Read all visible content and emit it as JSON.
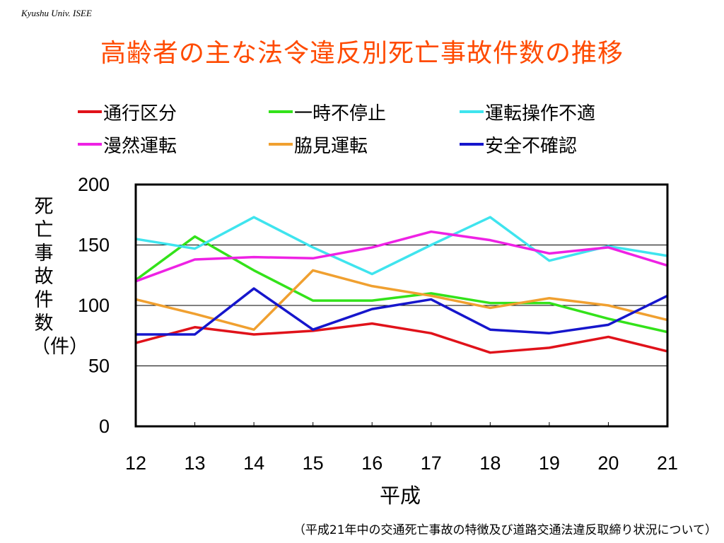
{
  "header": {
    "org": "Kyushu Univ. ISEE",
    "title": "高齢者の主な法令違反別死亡事故件数の推移"
  },
  "source_note": "（平成21年中の交通死亡事故の特徴及び道路交通法違反取締り状況について）",
  "chart_data": {
    "type": "line",
    "title": "高齢者の主な法令違反別死亡事故件数の推移",
    "xlabel": "平成",
    "ylabel": "死亡事故件数（件）",
    "categories": [
      "12",
      "13",
      "14",
      "15",
      "16",
      "17",
      "18",
      "19",
      "20",
      "21"
    ],
    "ylim": [
      0,
      200
    ],
    "yticks": [
      0,
      50,
      100,
      150,
      200
    ],
    "grid": true,
    "legend_position": "top",
    "series": [
      {
        "name": "通行区分",
        "color": "#e0121a",
        "values": [
          69,
          82,
          76,
          79,
          85,
          77,
          61,
          65,
          74,
          62
        ]
      },
      {
        "name": "一時不停止",
        "color": "#33e21a",
        "values": [
          121,
          157,
          129,
          104,
          104,
          110,
          102,
          102,
          89,
          78
        ]
      },
      {
        "name": "運転操作不適",
        "color": "#3fe4ee",
        "values": [
          155,
          147,
          173,
          148,
          126,
          150,
          173,
          137,
          149,
          141
        ]
      },
      {
        "name": "漫然運転",
        "color": "#ee22e4",
        "values": [
          120,
          138,
          140,
          139,
          148,
          161,
          154,
          143,
          148,
          133
        ]
      },
      {
        "name": "脇見運転",
        "color": "#f0a030",
        "values": [
          105,
          93,
          80,
          129,
          116,
          108,
          98,
          106,
          100,
          88
        ]
      },
      {
        "name": "安全不確認",
        "color": "#1616cc",
        "values": [
          76,
          76,
          114,
          80,
          97,
          105,
          80,
          77,
          84,
          108
        ]
      }
    ]
  }
}
